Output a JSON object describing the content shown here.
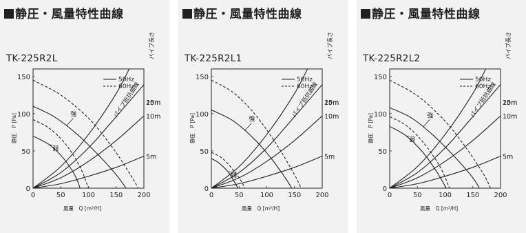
{
  "section_title": "静圧・風量特性曲線",
  "ylabel": "静圧　P [Pa]",
  "xlabel": "風量　Q [m³/H]",
  "legend": {
    "hz50": "50Hz",
    "hz60": "60Hz"
  },
  "pipe_length_label": "パイプ長さ",
  "pipe_curve_label": "パイプ抵抗曲線",
  "pipe_lengths": [
    "20m",
    "15m",
    "10m",
    "5m"
  ],
  "strong_label": "強",
  "weak_label": "弱",
  "chart_data": [
    {
      "type": "line",
      "title": "TK-225R2L",
      "xlabel": "風量　Q [m³/H]",
      "ylabel": "静圧　P [Pa]",
      "xlim": [
        0,
        200
      ],
      "ylim": [
        0,
        160
      ],
      "x_ticks": [
        0,
        50,
        100,
        150,
        200
      ],
      "y_ticks": [
        0,
        50,
        100,
        150
      ],
      "legend_position": "top-right",
      "fan_curves": [
        {
          "name": "強 50Hz",
          "line": "solid",
          "points": [
            [
              0,
              110
            ],
            [
              40,
              95
            ],
            [
              80,
              72
            ],
            [
              120,
              43
            ],
            [
              150,
              18
            ],
            [
              168,
              0
            ]
          ]
        },
        {
          "name": "強 60Hz",
          "line": "dashed",
          "points": [
            [
              0,
              145
            ],
            [
              50,
              125
            ],
            [
              100,
              94
            ],
            [
              140,
              58
            ],
            [
              170,
              25
            ],
            [
              190,
              0
            ]
          ]
        },
        {
          "name": "弱 50Hz",
          "line": "solid",
          "points": [
            [
              0,
              70
            ],
            [
              30,
              58
            ],
            [
              55,
              40
            ],
            [
              75,
              18
            ],
            [
              85,
              0
            ]
          ]
        },
        {
          "name": "弱 60Hz",
          "line": "dashed",
          "points": [
            [
              0,
              92
            ],
            [
              30,
              80
            ],
            [
              60,
              58
            ],
            [
              85,
              28
            ],
            [
              100,
              0
            ]
          ]
        }
      ],
      "pipe_curves": [
        {
          "name": "20m",
          "points": [
            [
              0,
              0
            ],
            [
              50,
              29
            ],
            [
              100,
              72
            ],
            [
              150,
              127
            ],
            [
              180,
              170
            ]
          ]
        },
        {
          "name": "15m",
          "points": [
            [
              0,
              0
            ],
            [
              50,
              21
            ],
            [
              100,
              54
            ],
            [
              150,
              96
            ],
            [
              200,
              139
            ]
          ]
        },
        {
          "name": "10m",
          "points": [
            [
              0,
              0
            ],
            [
              50,
              14
            ],
            [
              100,
              36
            ],
            [
              150,
              64
            ],
            [
              200,
              97
            ]
          ]
        },
        {
          "name": "5m",
          "points": [
            [
              0,
              0
            ],
            [
              50,
              6
            ],
            [
              100,
              16
            ],
            [
              150,
              28
            ],
            [
              200,
              43
            ]
          ]
        }
      ]
    },
    {
      "type": "line",
      "title": "TK-225R2L1",
      "xlabel": "風量　Q [m³/H]",
      "ylabel": "静圧　P [Pa]",
      "xlim": [
        0,
        200
      ],
      "ylim": [
        0,
        160
      ],
      "x_ticks": [
        0,
        50,
        100,
        150,
        200
      ],
      "y_ticks": [
        0,
        50,
        100,
        150
      ],
      "legend_position": "top-right",
      "fan_curves": [
        {
          "name": "強 50Hz",
          "line": "solid",
          "points": [
            [
              0,
              105
            ],
            [
              40,
              90
            ],
            [
              80,
              64
            ],
            [
              110,
              38
            ],
            [
              135,
              12
            ],
            [
              145,
              0
            ]
          ]
        },
        {
          "name": "強 60Hz",
          "line": "dashed",
          "points": [
            [
              0,
              145
            ],
            [
              40,
              128
            ],
            [
              80,
              98
            ],
            [
              120,
              56
            ],
            [
              150,
              18
            ],
            [
              162,
              0
            ]
          ]
        },
        {
          "name": "弱 50Hz",
          "line": "solid",
          "points": [
            [
              0,
              40
            ],
            [
              15,
              33
            ],
            [
              30,
              22
            ],
            [
              42,
              8
            ],
            [
              48,
              0
            ]
          ]
        },
        {
          "name": "弱 60Hz",
          "line": "dashed",
          "points": [
            [
              0,
              48
            ],
            [
              20,
              40
            ],
            [
              40,
              24
            ],
            [
              55,
              8
            ],
            [
              60,
              0
            ]
          ]
        }
      ],
      "pipe_curves": [
        {
          "name": "20m",
          "points": [
            [
              0,
              0
            ],
            [
              50,
              29
            ],
            [
              100,
              72
            ],
            [
              150,
              127
            ],
            [
              180,
              170
            ]
          ]
        },
        {
          "name": "15m",
          "points": [
            [
              0,
              0
            ],
            [
              50,
              21
            ],
            [
              100,
              54
            ],
            [
              150,
              96
            ],
            [
              200,
              139
            ]
          ]
        },
        {
          "name": "10m",
          "points": [
            [
              0,
              0
            ],
            [
              50,
              14
            ],
            [
              100,
              36
            ],
            [
              150,
              64
            ],
            [
              200,
              97
            ]
          ]
        },
        {
          "name": "5m",
          "points": [
            [
              0,
              0
            ],
            [
              50,
              6
            ],
            [
              100,
              16
            ],
            [
              150,
              28
            ],
            [
              200,
              43
            ]
          ]
        }
      ]
    },
    {
      "type": "line",
      "title": "TK-225R2L2",
      "xlabel": "風量　Q [m³/H]",
      "ylabel": "静圧　P [Pa]",
      "xlim": [
        0,
        200
      ],
      "ylim": [
        0,
        160
      ],
      "x_ticks": [
        0,
        50,
        100,
        150,
        200
      ],
      "y_ticks": [
        0,
        50,
        100,
        150
      ],
      "legend_position": "top-right",
      "fan_curves": [
        {
          "name": "強 50Hz",
          "line": "solid",
          "points": [
            [
              0,
              108
            ],
            [
              40,
              94
            ],
            [
              80,
              70
            ],
            [
              120,
              40
            ],
            [
              150,
              14
            ],
            [
              162,
              0
            ]
          ]
        },
        {
          "name": "強 60Hz",
          "line": "dashed",
          "points": [
            [
              0,
              145
            ],
            [
              50,
              124
            ],
            [
              100,
              90
            ],
            [
              140,
              52
            ],
            [
              170,
              18
            ],
            [
              182,
              0
            ]
          ]
        },
        {
          "name": "弱 50Hz",
          "line": "solid",
          "points": [
            [
              0,
              83
            ],
            [
              30,
              70
            ],
            [
              60,
              48
            ],
            [
              85,
              22
            ],
            [
              102,
              0
            ]
          ]
        },
        {
          "name": "弱 60Hz",
          "line": "dashed",
          "points": [
            [
              0,
              96
            ],
            [
              30,
              84
            ],
            [
              60,
              62
            ],
            [
              90,
              30
            ],
            [
              108,
              0
            ]
          ]
        }
      ],
      "pipe_curves": [
        {
          "name": "20m",
          "points": [
            [
              0,
              0
            ],
            [
              50,
              29
            ],
            [
              100,
              72
            ],
            [
              150,
              127
            ],
            [
              180,
              170
            ]
          ]
        },
        {
          "name": "15m",
          "points": [
            [
              0,
              0
            ],
            [
              50,
              21
            ],
            [
              100,
              54
            ],
            [
              150,
              96
            ],
            [
              200,
              139
            ]
          ]
        },
        {
          "name": "10m",
          "points": [
            [
              0,
              0
            ],
            [
              50,
              14
            ],
            [
              100,
              36
            ],
            [
              150,
              64
            ],
            [
              200,
              97
            ]
          ]
        },
        {
          "name": "5m",
          "points": [
            [
              0,
              0
            ],
            [
              50,
              6
            ],
            [
              100,
              16
            ],
            [
              150,
              28
            ],
            [
              200,
              43
            ]
          ]
        }
      ]
    }
  ]
}
